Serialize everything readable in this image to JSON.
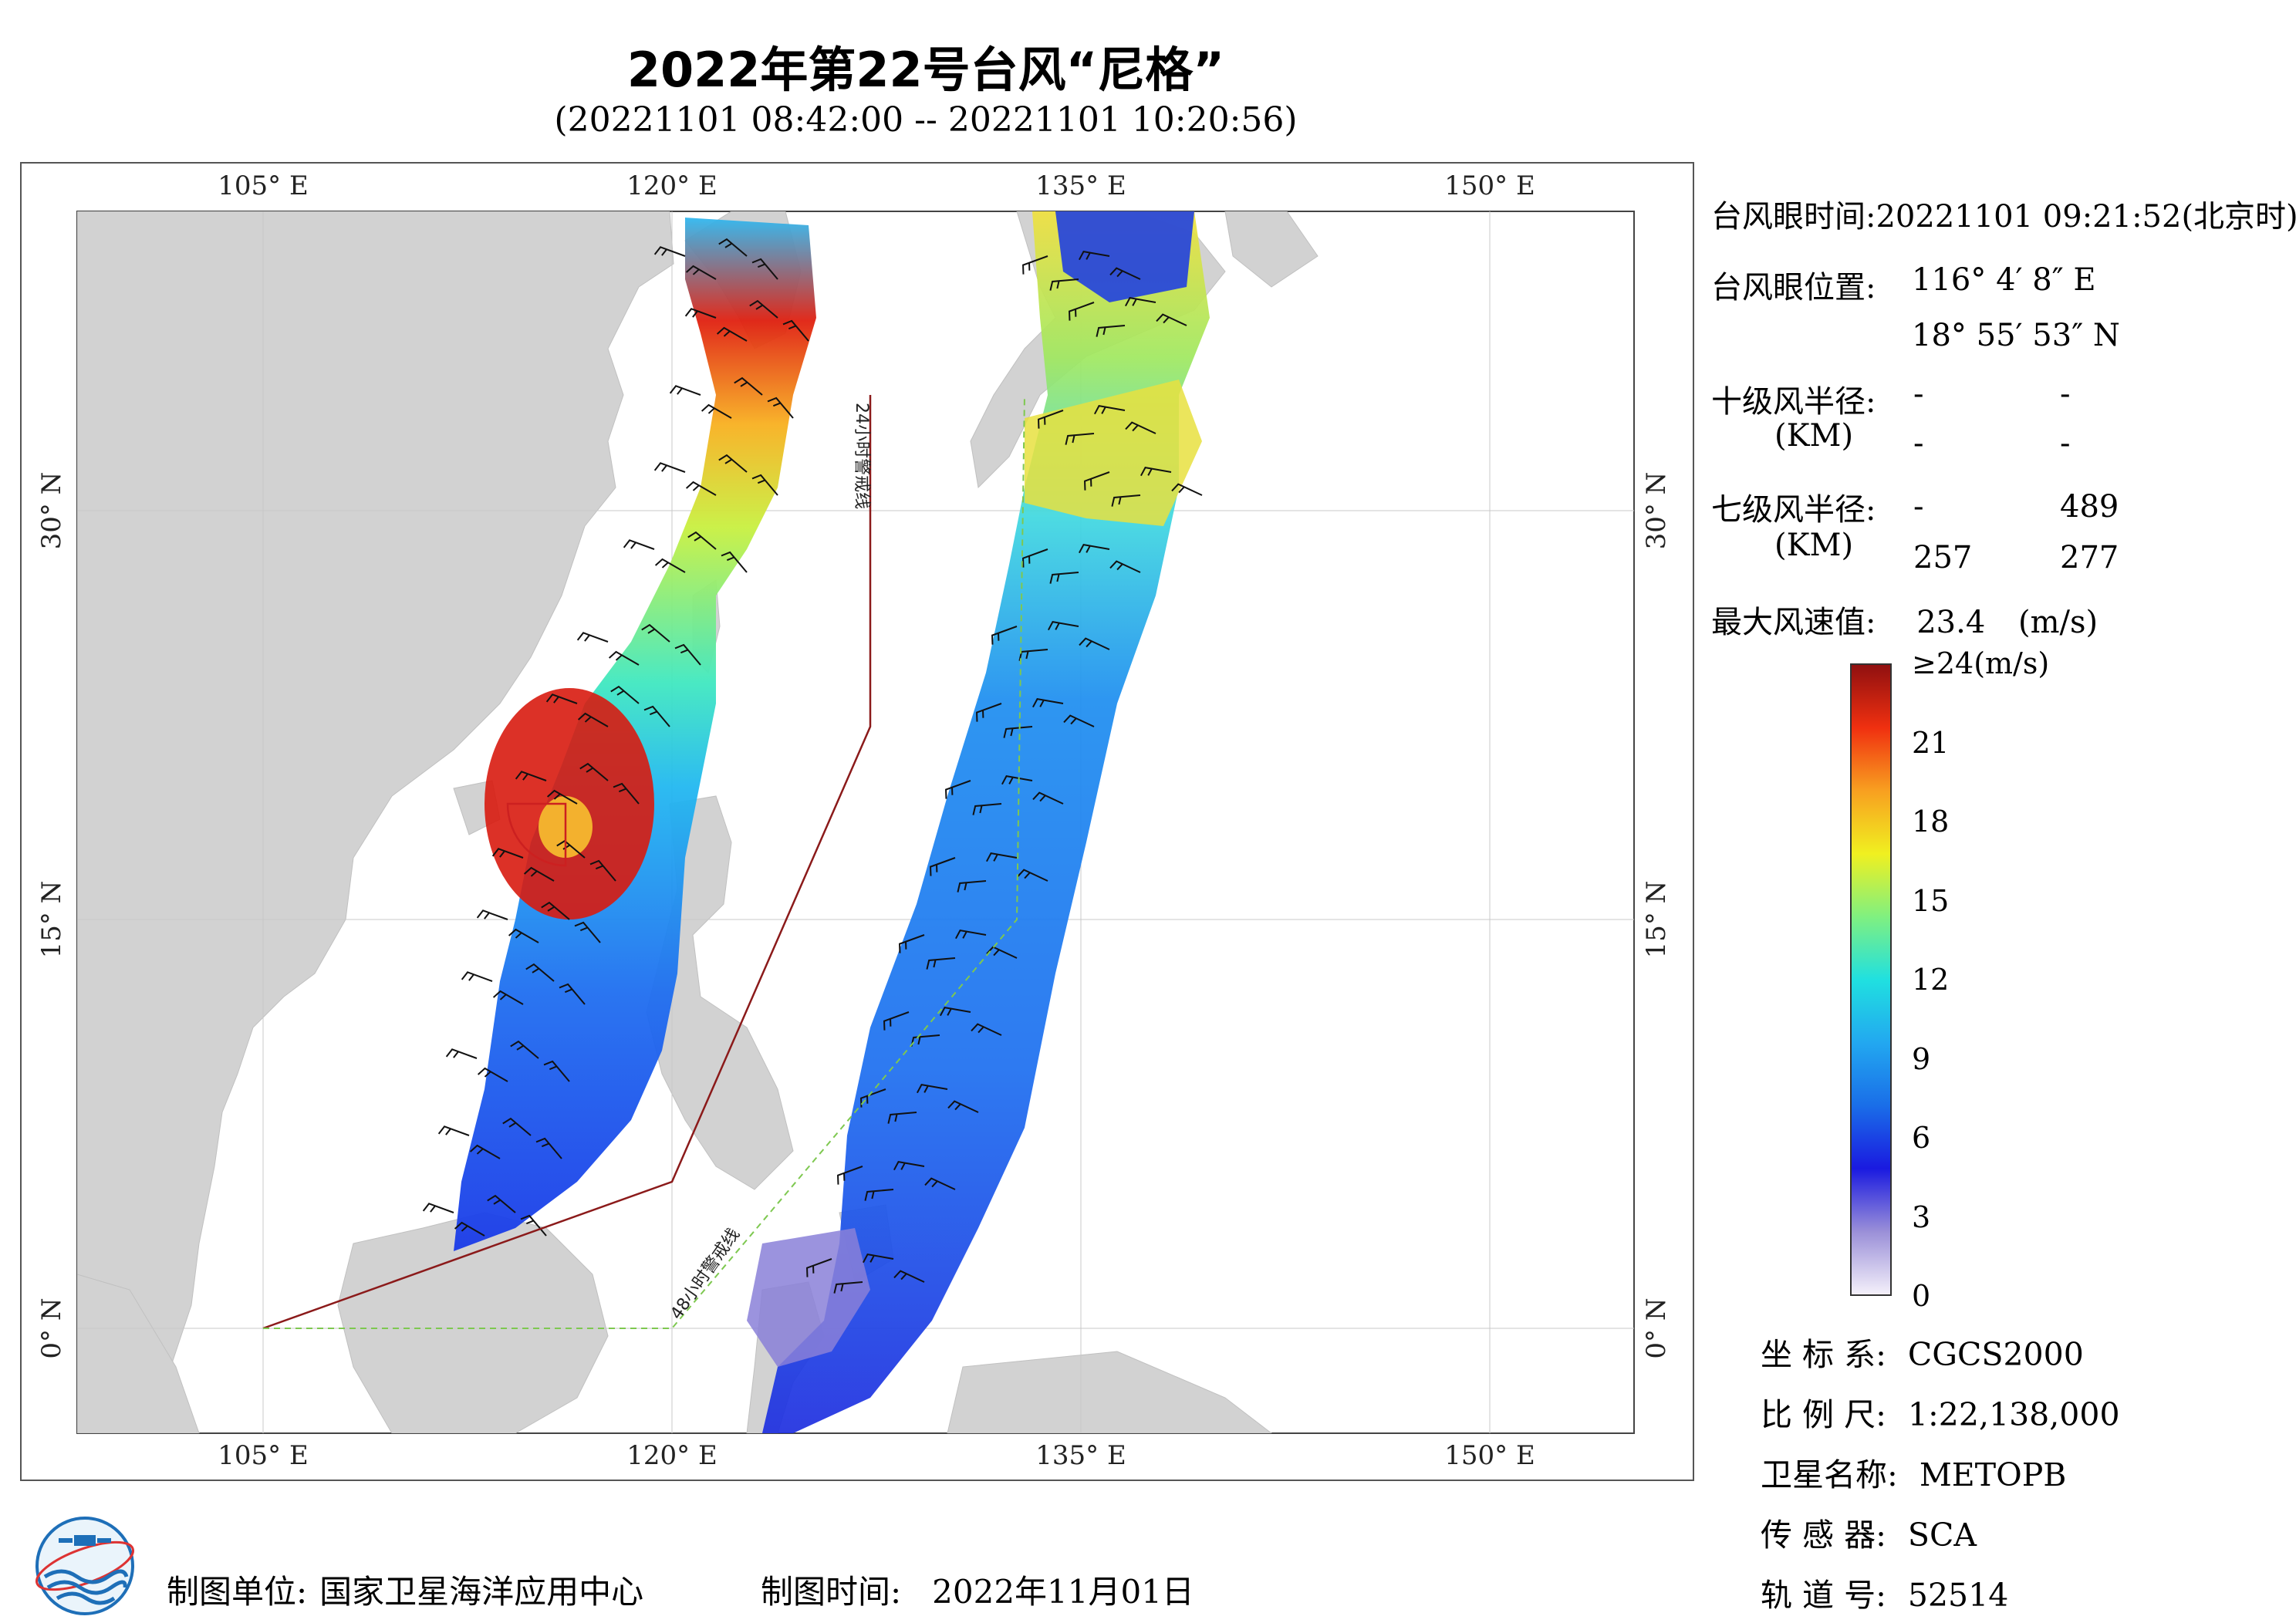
{
  "title": "2022年第22号台风“尼格”",
  "subtitle": "(20221101 08:42:00 -- 20221101 10:20:56)",
  "map": {
    "lon_labels": [
      "105° E",
      "120° E",
      "135° E",
      "150° E"
    ],
    "lat_labels": [
      "30° N",
      "15° N",
      "0° N"
    ],
    "warning_24h": "24小时警戒线",
    "warning_48h": "48小时警戒线",
    "colors": {
      "land": "#d2d2d2",
      "ocean": "#ffffff",
      "warning_24h_line": "#8b1a1a",
      "warning_48h_line": "#7ec850",
      "wind_radius": "#cc2020"
    }
  },
  "info": {
    "eye_time_label": "台风眼时间:",
    "eye_time_value": "20221101 09:21:52(北京时)",
    "eye_pos_label": "台风眼位置:",
    "eye_lon": "116° 4′ 8″ E",
    "eye_lat": "18° 55′ 53″ N",
    "r10_label": "十级风半径:",
    "r10_unit": "(KM)",
    "r10_values": [
      "-",
      "-",
      "-",
      "-"
    ],
    "r7_label": "七级风半径:",
    "r7_unit": "(KM)",
    "r7_values": [
      "-",
      "489",
      "257",
      "277"
    ],
    "max_wind_label": "最大风速值:",
    "max_wind_value": "23.4",
    "max_wind_unit": "(m/s)"
  },
  "colorbar": {
    "ticks": [
      "≥24(m/s)",
      "21",
      "18",
      "15",
      "12",
      "9",
      "6",
      "3",
      "0"
    ],
    "min": 0,
    "max": 24,
    "stops": [
      "#f4f0fa",
      "#9a8fd8",
      "#1a1ae0",
      "#1a6ee8",
      "#22a8f0",
      "#20e0e0",
      "#80f080",
      "#f0f020",
      "#f8a020",
      "#f03010",
      "#901010"
    ]
  },
  "meta": {
    "crs_label": "坐 标 系:",
    "crs_value": "CGCS2000",
    "scale_label": "比 例 尺:",
    "scale_value": "1:22,138,000",
    "sat_label": "卫星名称:",
    "sat_value": "METOPB",
    "sensor_label": "传 感 器:",
    "sensor_value": "SCA",
    "orbit_label": "轨 道 号:",
    "orbit_value": "52514"
  },
  "footer": {
    "unit_label": "制图单位:",
    "unit_value": "国家卫星海洋应用中心",
    "time_label": "制图时间:",
    "time_value": "2022年11月01日"
  }
}
